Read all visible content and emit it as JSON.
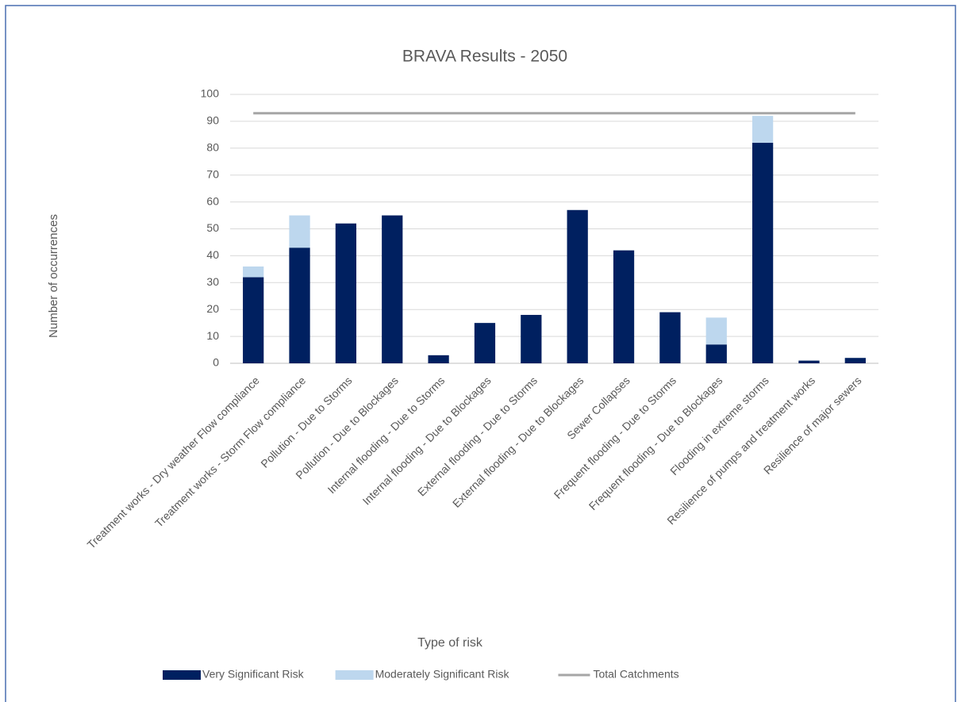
{
  "chart_data": {
    "type": "bar",
    "stacked": true,
    "title": "BRAVA Results - 2050",
    "x_label": "Type of risk",
    "y_label": "Number of occurrences",
    "categories": [
      "Treatment works - Dry weather Flow compliance",
      "Treatment works - Storm Flow compliance",
      "Pollution - Due to Storms",
      "Pollution - Due to Blockages",
      "Internal flooding - Due to Storms",
      "Internal flooding - Due to Blockages",
      "External flooding - Due to Storms",
      "External flooding - Due to Blockages",
      "Sewer Collapses",
      "Frequent flooding - Due to Storms",
      "Frequent flooding - Due to Blockages",
      "Flooding in extreme storms",
      "Resilience of pumps and treatment works",
      "Resilience of major sewers"
    ],
    "series": [
      {
        "name": "Very Significant Risk",
        "type": "bar",
        "color": "#002060",
        "values": [
          32,
          43,
          52,
          55,
          3,
          15,
          18,
          57,
          42,
          19,
          7,
          82,
          1,
          2
        ]
      },
      {
        "name": "Moderately Significant Risk",
        "type": "bar",
        "color": "#bdd7ee",
        "values": [
          4,
          12,
          0,
          0,
          0,
          0,
          0,
          0,
          0,
          0,
          10,
          10,
          0,
          0
        ]
      },
      {
        "name": "Total Catchments",
        "type": "line",
        "color": "#a6a6a6",
        "values": [
          93,
          93,
          93,
          93,
          93,
          93,
          93,
          93,
          93,
          93,
          93,
          93,
          93,
          93
        ]
      }
    ],
    "ylim": [
      0,
      100
    ],
    "yticks": [
      0,
      10,
      20,
      30,
      40,
      50,
      60,
      70,
      80,
      90,
      100
    ],
    "grid": true,
    "legend": "bottom"
  }
}
